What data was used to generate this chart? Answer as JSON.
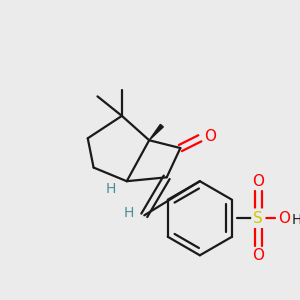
{
  "bg_color": "#ebebeb",
  "bond_color": "#1a1a1a",
  "o_color": "#ff0000",
  "s_color": "#cccc00",
  "h_color": "#4a9090",
  "figsize": [
    3.0,
    3.0
  ],
  "dpi": 100,
  "xlim": [
    0,
    300
  ],
  "ylim": [
    0,
    300
  ]
}
